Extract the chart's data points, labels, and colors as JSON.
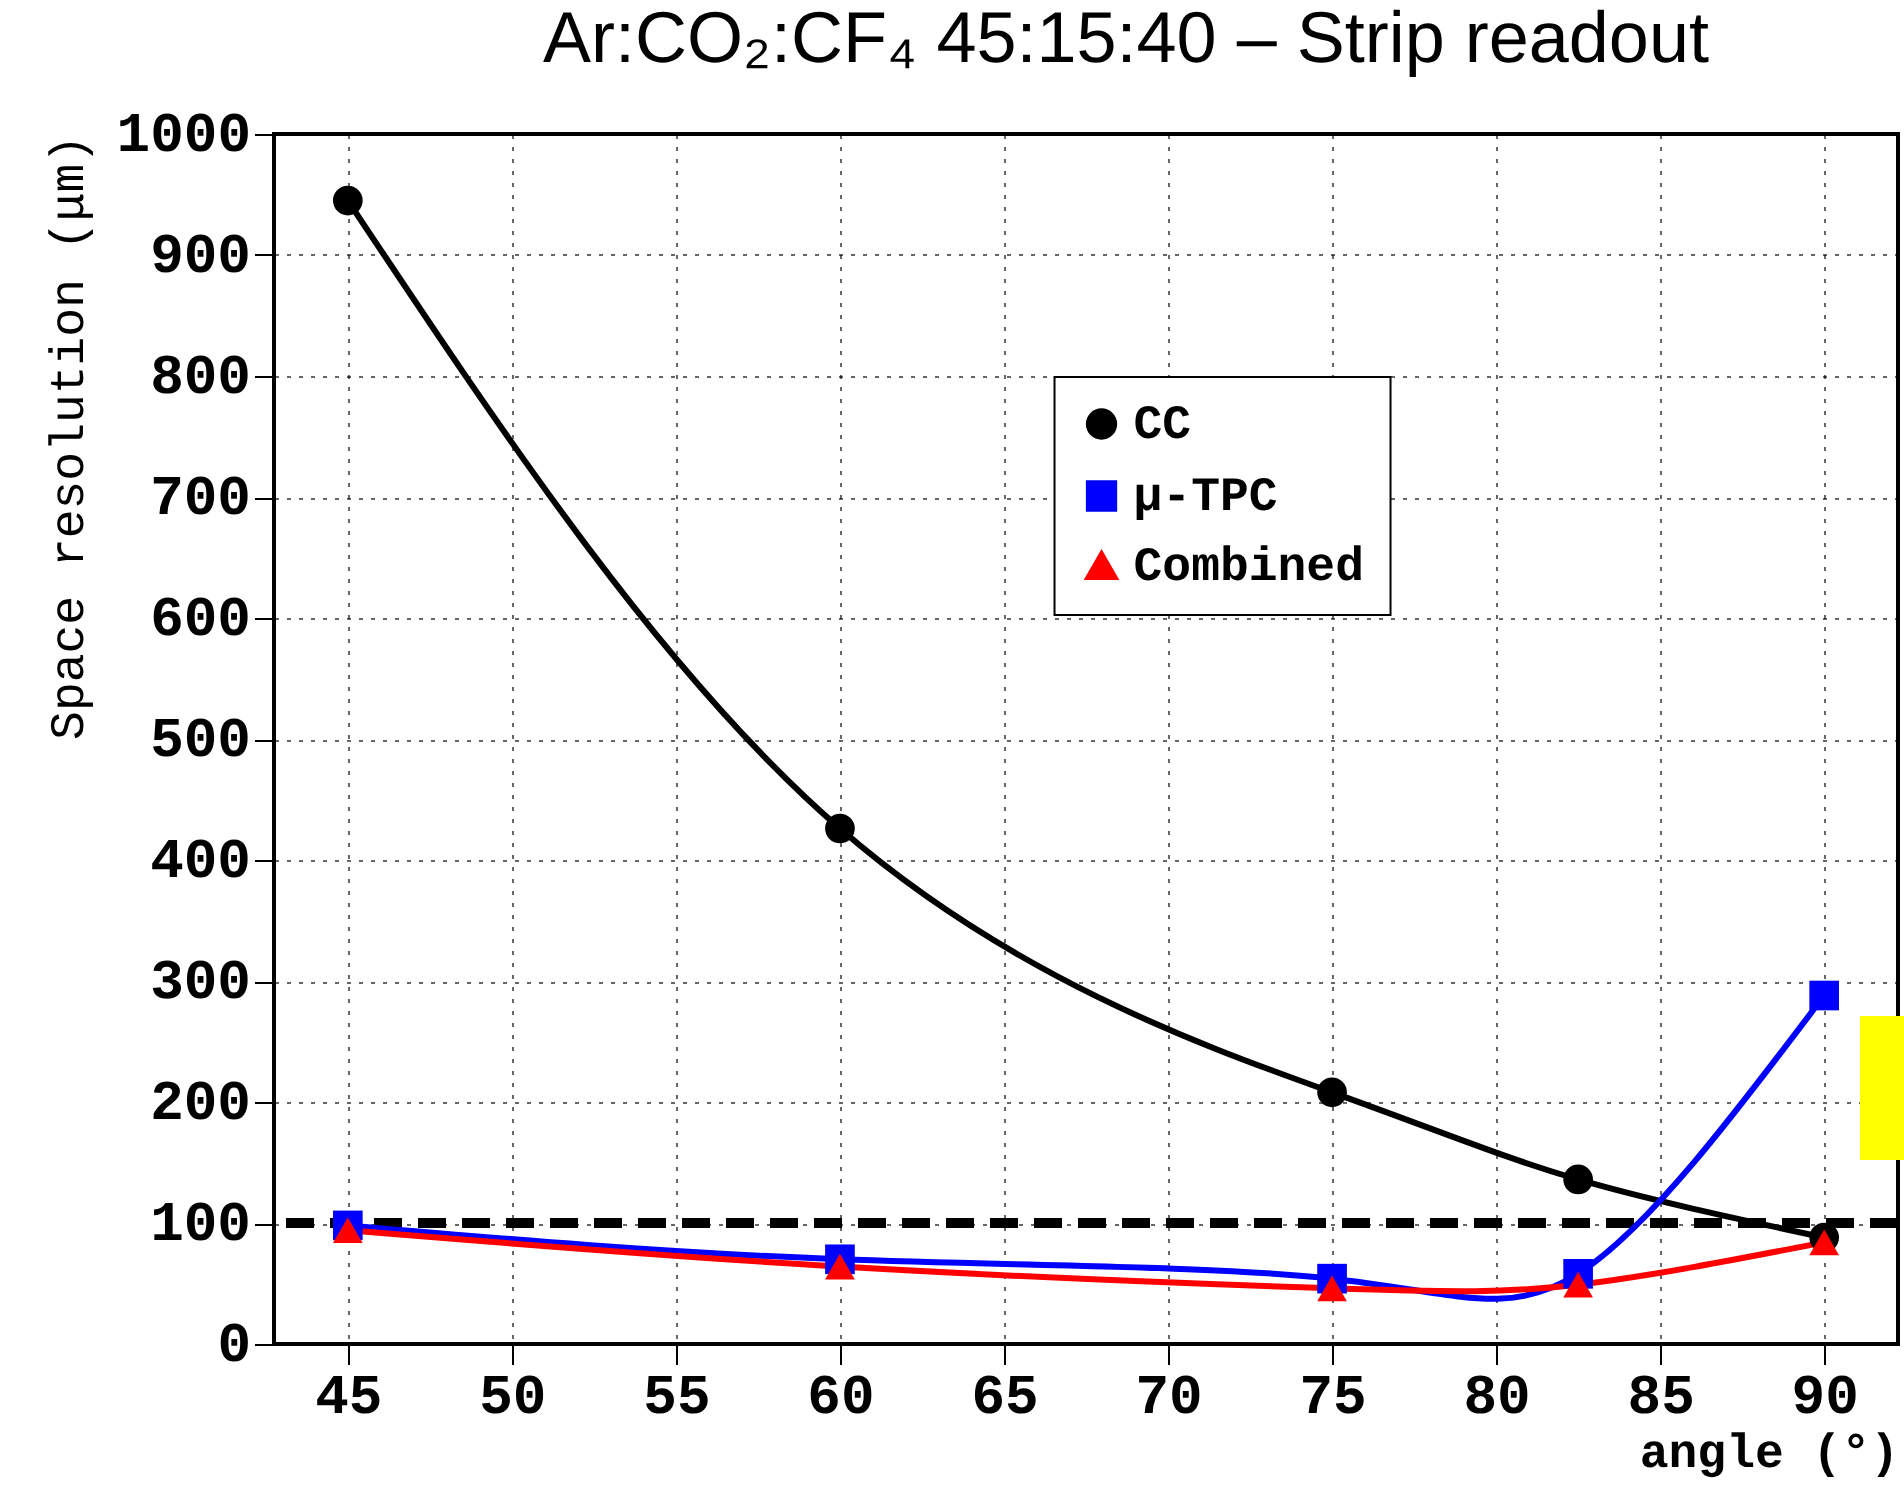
{
  "chart_data": {
    "type": "line",
    "title": "Ar:CO₂:CF₄ 45:15:40 – Strip readout",
    "xlabel": "angle (°)",
    "ylabel": "Space resolution (μm)",
    "x": [
      45,
      60,
      75,
      82.5,
      90
    ],
    "series": [
      {
        "name": "CC",
        "color": "#000000",
        "marker": "circle",
        "values": [
          945,
          426,
          208,
          136,
          88
        ]
      },
      {
        "name": "μ-TPC",
        "color": "#0000ff",
        "marker": "square",
        "values": [
          98,
          70,
          54,
          58,
          288
        ]
      },
      {
        "name": "Combined",
        "color": "#ff0000",
        "marker": "triangle",
        "values": [
          94,
          64,
          46,
          49,
          84
        ]
      }
    ],
    "xlim": [
      42.75,
      92.25
    ],
    "xticks": [
      45,
      50,
      55,
      60,
      65,
      70,
      75,
      80,
      85,
      90
    ],
    "ylim": [
      0,
      1000
    ],
    "yticks": [
      0,
      100,
      200,
      300,
      400,
      500,
      600,
      700,
      800,
      900,
      1000
    ],
    "grid": true,
    "legend": "top",
    "ref_lines": [
      {
        "axis": "y",
        "value": 100,
        "color": "#000000",
        "line_style": "dashed"
      }
    ]
  }
}
